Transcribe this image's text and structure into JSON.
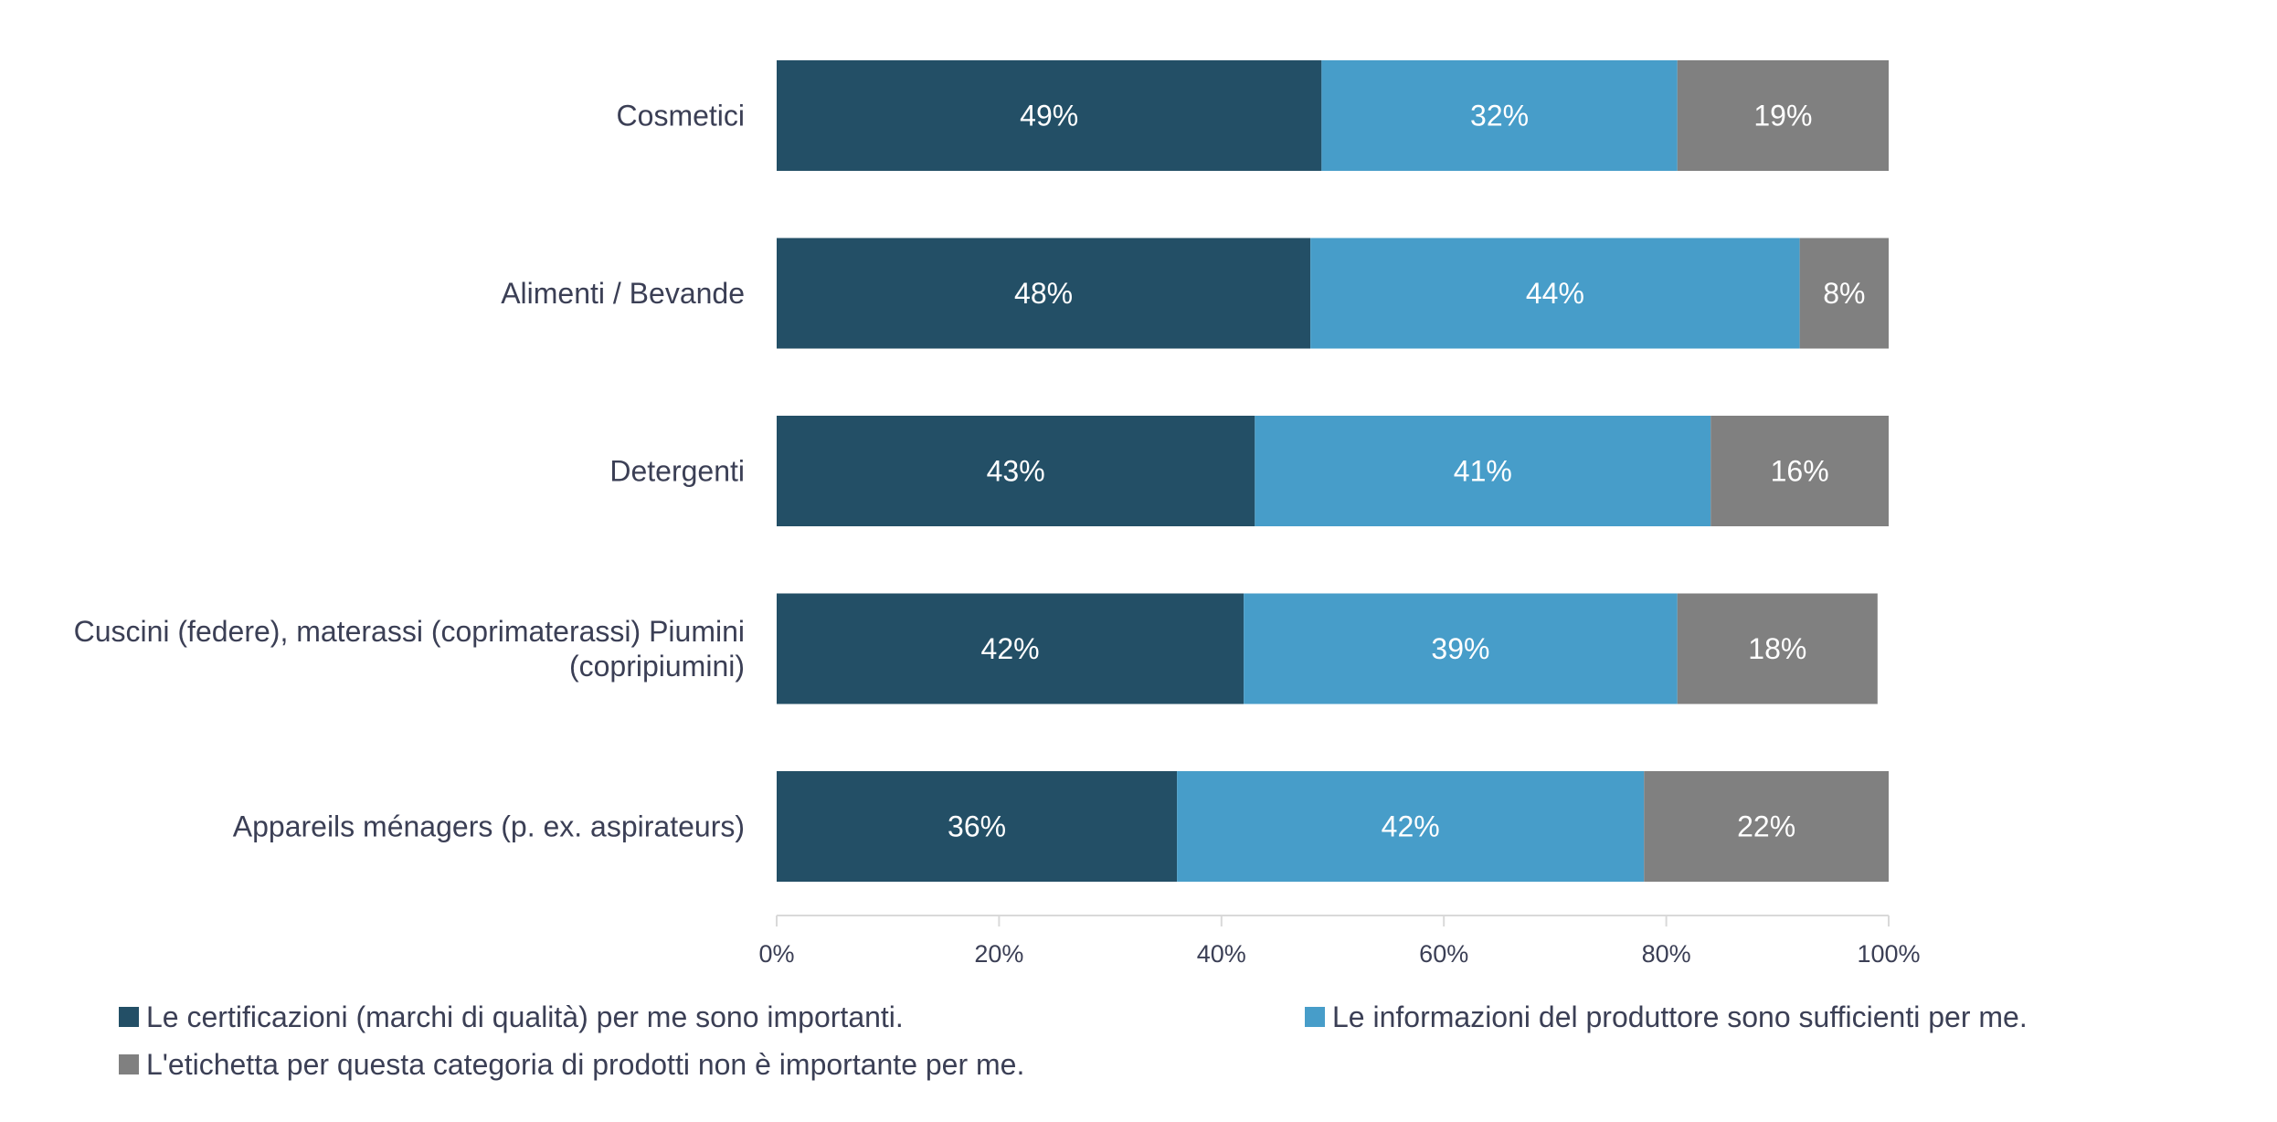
{
  "chart_data": {
    "type": "bar",
    "orientation": "horizontal",
    "stacked": true,
    "categories": [
      [
        "Cosmetici"
      ],
      [
        "Alimenti / Bevande"
      ],
      [
        "Detergenti"
      ],
      [
        "Cuscini (federe), materassi (coprimaterassi) Piumini",
        "(copripiumini)"
      ],
      [
        "Appareils ménagers (p. ex. aspirateurs)"
      ]
    ],
    "series": [
      {
        "name": "Le certificazioni (marchi di qualità) per me sono importanti.",
        "color": "#234f66",
        "values": [
          49,
          48,
          43,
          42,
          36
        ],
        "labels": [
          "49%",
          "48%",
          "43%",
          "42%",
          "36%"
        ]
      },
      {
        "name": "Le informazioni del produttore sono sufficienti per me.",
        "color": "#479dc9",
        "values": [
          32,
          44,
          41,
          39,
          42
        ],
        "labels": [
          "32%",
          "44%",
          "41%",
          "39%",
          "42%"
        ]
      },
      {
        "name": "L'etichetta per questa categoria di prodotti non è importante per me.",
        "color": "#808080",
        "values": [
          19,
          8,
          16,
          18,
          22
        ],
        "labels": [
          "19%",
          "8%",
          "16%",
          "18%",
          "22%"
        ]
      }
    ],
    "x_ticks": [
      "0%",
      "20%",
      "40%",
      "60%",
      "80%",
      "100%"
    ],
    "xlim": [
      0,
      100
    ],
    "grid": false,
    "legend_position": "bottom"
  }
}
